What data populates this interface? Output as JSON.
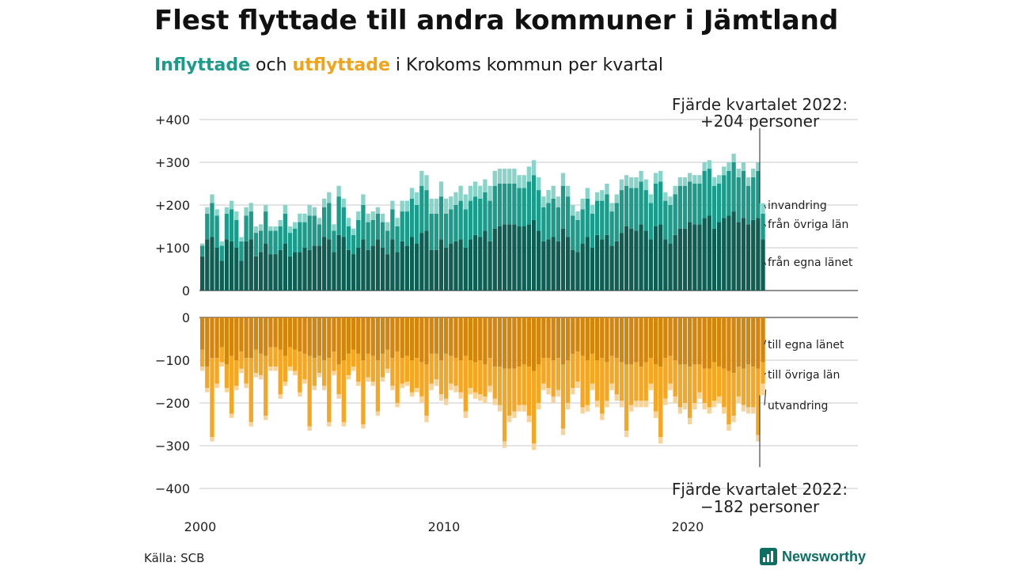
{
  "title": "Flest flyttade till andra kommuner i Jämtland",
  "subtitle": {
    "in_word": "Inflyttade",
    "mid": " och ",
    "out_word": "utflyttade",
    "rest": " i Krokoms kommun per kvartal"
  },
  "source": "Källa: SCB",
  "logo": "Newsworthy",
  "colors": {
    "in_egna": "#0f5e54",
    "in_ovriga": "#1c9a8a",
    "in_invandring": "#8ad3c8",
    "out_egna": "#d4850b",
    "out_ovriga": "#f5a623",
    "out_utvandring": "#f7d397",
    "grid": "#dcdcdc",
    "axis": "#222222"
  },
  "chart_data": {
    "type": "bar",
    "stacked": true,
    "x_unit": "quarter",
    "x_start": "2000 Q1",
    "x_ticks": [
      "2000",
      "2010",
      "2020"
    ],
    "top_panel": {
      "yticks": [
        "+400",
        "+300",
        "+200",
        "+100",
        "0"
      ],
      "ylim": [
        0,
        400
      ],
      "series": [
        {
          "name": "från egna länet",
          "values": [
            80,
            120,
            125,
            100,
            70,
            120,
            115,
            100,
            70,
            115,
            120,
            80,
            90,
            110,
            85,
            85,
            95,
            110,
            80,
            90,
            90,
            100,
            95,
            105,
            105,
            125,
            120,
            90,
            130,
            125,
            95,
            85,
            100,
            120,
            95,
            105,
            120,
            100,
            85,
            120,
            90,
            115,
            105,
            125,
            110,
            135,
            140,
            95,
            95,
            120,
            100,
            110,
            115,
            120,
            100,
            120,
            130,
            125,
            140,
            115,
            145,
            150,
            155,
            155,
            155,
            150,
            150,
            155,
            165,
            140,
            115,
            120,
            125,
            115,
            145,
            125,
            95,
            90,
            110,
            125,
            100,
            130,
            120,
            130,
            105,
            115,
            135,
            150,
            145,
            140,
            155,
            140,
            120,
            150,
            155,
            120,
            110,
            130,
            145,
            145,
            160,
            155,
            155,
            170,
            175,
            145,
            160,
            170,
            175,
            185,
            160,
            170,
            155,
            165,
            170,
            120
          ]
        },
        {
          "name": "från övriga län",
          "values": [
            25,
            60,
            80,
            75,
            35,
            60,
            75,
            65,
            45,
            60,
            65,
            55,
            50,
            75,
            55,
            55,
            55,
            70,
            55,
            55,
            70,
            60,
            80,
            70,
            50,
            70,
            85,
            50,
            90,
            70,
            55,
            45,
            65,
            80,
            65,
            60,
            60,
            60,
            55,
            70,
            60,
            70,
            80,
            90,
            90,
            110,
            95,
            85,
            85,
            100,
            80,
            80,
            85,
            90,
            90,
            90,
            90,
            90,
            90,
            95,
            100,
            100,
            95,
            95,
            95,
            90,
            90,
            100,
            105,
            95,
            80,
            85,
            90,
            80,
            100,
            95,
            80,
            75,
            80,
            90,
            80,
            80,
            90,
            95,
            80,
            90,
            100,
            95,
            95,
            100,
            100,
            95,
            85,
            100,
            100,
            90,
            90,
            95,
            100,
            100,
            95,
            95,
            95,
            110,
            110,
            100,
            90,
            100,
            105,
            115,
            105,
            110,
            90,
            100,
            110,
            60
          ]
        },
        {
          "name": "invandring",
          "values": [
            5,
            15,
            20,
            15,
            10,
            15,
            20,
            20,
            10,
            20,
            20,
            15,
            15,
            15,
            10,
            10,
            15,
            20,
            15,
            15,
            20,
            20,
            25,
            20,
            15,
            20,
            25,
            15,
            25,
            20,
            20,
            15,
            20,
            25,
            20,
            20,
            15,
            20,
            20,
            20,
            20,
            25,
            25,
            25,
            30,
            35,
            35,
            35,
            35,
            35,
            35,
            30,
            30,
            35,
            35,
            35,
            35,
            30,
            30,
            35,
            35,
            35,
            35,
            35,
            35,
            30,
            30,
            35,
            35,
            30,
            25,
            30,
            30,
            25,
            30,
            25,
            25,
            20,
            25,
            25,
            20,
            20,
            25,
            25,
            20,
            20,
            25,
            25,
            25,
            25,
            25,
            25,
            20,
            25,
            25,
            20,
            20,
            20,
            20,
            20,
            20,
            20,
            20,
            20,
            20,
            20,
            20,
            20,
            20,
            20,
            20,
            20,
            20,
            20,
            20,
            24
          ]
        }
      ]
    },
    "bottom_panel": {
      "yticks": [
        "0",
        "−100",
        "−200",
        "−300",
        "−400"
      ],
      "ylim": [
        -400,
        0
      ],
      "series": [
        {
          "name": "till egna länet",
          "values": [
            75,
            115,
            95,
            95,
            70,
            110,
            90,
            100,
            80,
            95,
            95,
            75,
            85,
            90,
            70,
            70,
            75,
            90,
            70,
            75,
            80,
            85,
            90,
            95,
            90,
            100,
            95,
            80,
            110,
            100,
            85,
            75,
            85,
            100,
            85,
            90,
            100,
            85,
            75,
            95,
            80,
            95,
            90,
            100,
            95,
            105,
            110,
            85,
            85,
            100,
            85,
            90,
            95,
            100,
            90,
            100,
            105,
            100,
            110,
            95,
            115,
            115,
            120,
            120,
            120,
            115,
            110,
            115,
            125,
            110,
            95,
            95,
            100,
            95,
            110,
            100,
            85,
            80,
            90,
            100,
            85,
            100,
            95,
            105,
            90,
            95,
            105,
            110,
            110,
            105,
            115,
            105,
            95,
            110,
            115,
            95,
            90,
            100,
            110,
            110,
            115,
            110,
            110,
            120,
            120,
            105,
            115,
            120,
            125,
            130,
            115,
            120,
            110,
            115,
            120,
            105
          ]
        },
        {
          "name": "till övriga län",
          "values": [
            40,
            50,
            185,
            60,
            35,
            55,
            135,
            60,
            40,
            60,
            150,
            55,
            50,
            140,
            45,
            45,
            105,
            60,
            45,
            50,
            95,
            60,
            165,
            65,
            40,
            60,
            150,
            45,
            70,
            145,
            50,
            40,
            65,
            150,
            55,
            60,
            120,
            55,
            45,
            65,
            120,
            60,
            60,
            75,
            70,
            80,
            120,
            70,
            60,
            80,
            105,
            65,
            65,
            75,
            130,
            65,
            70,
            80,
            75,
            65,
            75,
            90,
            170,
            110,
            100,
            90,
            95,
            115,
            170,
            90,
            60,
            70,
            85,
            75,
            150,
            100,
            80,
            70,
            120,
            105,
            70,
            95,
            130,
            90,
            65,
            85,
            90,
            155,
            95,
            90,
            80,
            90,
            60,
            110,
            165,
            95,
            65,
            85,
            100,
            90,
            120,
            90,
            65,
            80,
            90,
            90,
            70,
            90,
            125,
            100,
            70,
            85,
            100,
            95,
            155,
            50
          ]
        },
        {
          "name": "utvandring",
          "values": [
            10,
            10,
            10,
            10,
            10,
            10,
            10,
            10,
            10,
            10,
            10,
            10,
            10,
            10,
            10,
            10,
            10,
            10,
            10,
            10,
            10,
            10,
            10,
            10,
            10,
            10,
            10,
            10,
            10,
            10,
            10,
            10,
            10,
            10,
            10,
            10,
            10,
            10,
            10,
            10,
            10,
            10,
            10,
            10,
            10,
            15,
            15,
            15,
            15,
            15,
            15,
            15,
            15,
            15,
            15,
            15,
            15,
            15,
            15,
            15,
            15,
            15,
            15,
            15,
            15,
            15,
            15,
            15,
            15,
            15,
            15,
            15,
            15,
            15,
            15,
            15,
            15,
            15,
            15,
            15,
            15,
            15,
            15,
            15,
            15,
            15,
            15,
            15,
            15,
            15,
            15,
            15,
            15,
            15,
            15,
            15,
            15,
            15,
            15,
            15,
            15,
            15,
            15,
            15,
            15,
            15,
            15,
            15,
            15,
            15,
            15,
            15,
            15,
            15,
            15,
            27
          ]
        }
      ]
    },
    "annotations": {
      "top_line1": "Fjärde kvartalet 2022:",
      "top_line2": "+204 personer",
      "bottom_line1": "Fjärde kvartalet 2022:",
      "bottom_line2": "−182 personer"
    },
    "legend_placement": "right of last bar",
    "grid": true
  }
}
